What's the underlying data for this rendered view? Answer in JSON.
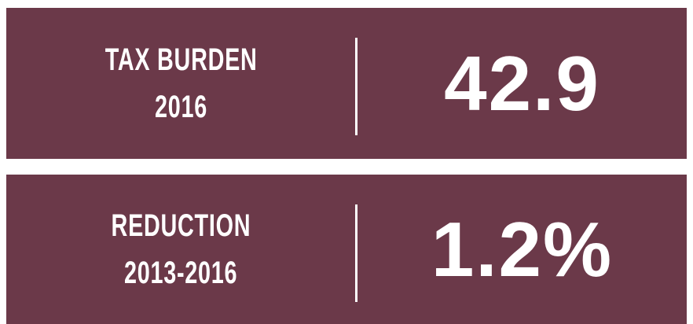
{
  "panels": [
    {
      "label_lines": [
        "TAX BURDEN",
        "2016"
      ],
      "value": "42.9"
    },
    {
      "label_lines": [
        "REDUCTION",
        "2013-2016"
      ],
      "value": "1.2%"
    }
  ]
}
